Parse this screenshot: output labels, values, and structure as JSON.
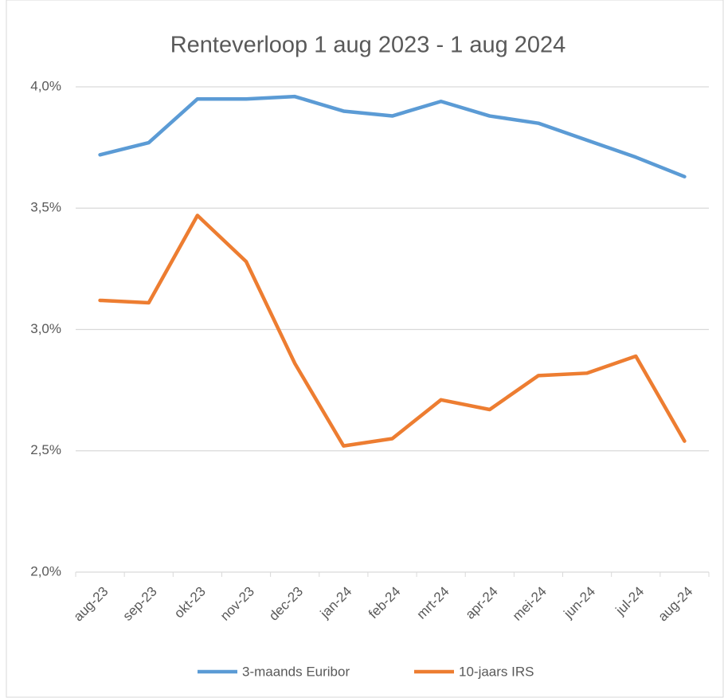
{
  "chart_data": {
    "type": "line",
    "title": "Renteverloop 1 aug 2023 - 1 aug 2024",
    "categories": [
      "aug-23",
      "sep-23",
      "okt-23",
      "nov-23",
      "dec-23",
      "jan-24",
      "feb-24",
      "mrt-24",
      "apr-24",
      "mei-24",
      "jun-24",
      "jul-24",
      "aug-24"
    ],
    "series": [
      {
        "name": "3-maands Euribor",
        "color": "#5b9bd5",
        "values": [
          3.72,
          3.77,
          3.95,
          3.95,
          3.96,
          3.9,
          3.88,
          3.94,
          3.88,
          3.85,
          3.78,
          3.71,
          3.63
        ]
      },
      {
        "name": "10-jaars IRS",
        "color": "#ed7d31",
        "values": [
          3.12,
          3.11,
          3.47,
          3.28,
          2.86,
          2.52,
          2.55,
          2.71,
          2.67,
          2.81,
          2.82,
          2.89,
          2.54
        ]
      }
    ],
    "ylim": [
      2.0,
      4.0
    ],
    "yticks": [
      {
        "value": 2.0,
        "label": "2,0%"
      },
      {
        "value": 2.5,
        "label": "2,5%"
      },
      {
        "value": 3.0,
        "label": "3,0%"
      },
      {
        "value": 3.5,
        "label": "3,5%"
      },
      {
        "value": 4.0,
        "label": "4,0%"
      }
    ],
    "grid": true,
    "legend": "bottom"
  }
}
